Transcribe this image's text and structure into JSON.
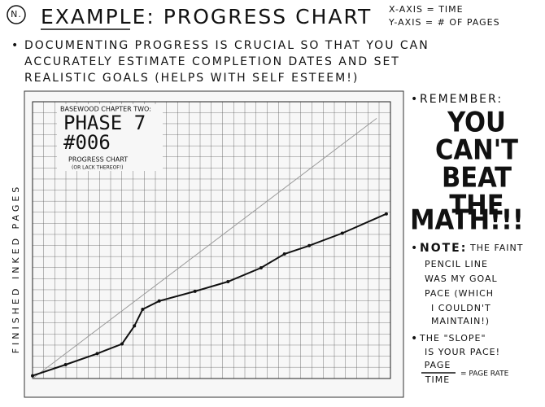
{
  "header": {
    "badge": "N.",
    "title": "EXAMPLE: PROGRESS CHART",
    "axis_notes": [
      "X-AXIS = TIME",
      "Y-AXIS = # OF PAGES"
    ]
  },
  "intro": {
    "lines": [
      "DOCUMENTING PROGRESS IS CRUCIAL SO THAT YOU CAN",
      "ACCURATELY ESTIMATE COMPLETION DATES AND SET",
      "REALISTIC GOALS (HELPS WITH SELF ESTEEM!)"
    ]
  },
  "chart_data": {
    "type": "line",
    "label_lines": [
      "BASEWOOD CHAPTER TWO:",
      "PHASE 7",
      "#006",
      "PROGRESS CHART",
      "(OR LACK THEREOF!)"
    ],
    "y_label": "FINISHED INKED PAGES",
    "xlim": [
      0,
      26
    ],
    "ylim": [
      0,
      20
    ],
    "grid": true,
    "series": [
      {
        "color": "#9a9a9a",
        "x": [
          0,
          25
        ],
        "values": [
          0,
          18.8
        ]
      },
      {
        "color": "#111111",
        "x": [
          0,
          2.4,
          4.7,
          6.5,
          7.4,
          8,
          9.2,
          11.8,
          14.2,
          16.6,
          18.3,
          20.1,
          22.5,
          25.7
        ],
        "values": [
          0.2,
          1.0,
          1.8,
          2.5,
          3.8,
          5.0,
          5.6,
          6.3,
          7.0,
          8.0,
          9.0,
          9.6,
          10.5,
          11.9
        ]
      }
    ]
  },
  "sidebar": {
    "remember": "REMEMBER:",
    "slogan": [
      "YOU",
      "CAN'T",
      "BEAT",
      "THE",
      "MATH!!!"
    ],
    "note_label": "NOTE:",
    "note_lines": [
      "THE FAINT",
      "PENCIL LINE",
      "WAS MY GOAL",
      "PACE (WHICH",
      "I COULDN'T",
      "MAINTAIN!)"
    ],
    "slope_lines": [
      "THE \"SLOPE\"",
      "IS YOUR PACE!"
    ],
    "formula": {
      "numerator": "PAGE",
      "denominator": "TIME",
      "result": "= PAGE RATE"
    }
  }
}
